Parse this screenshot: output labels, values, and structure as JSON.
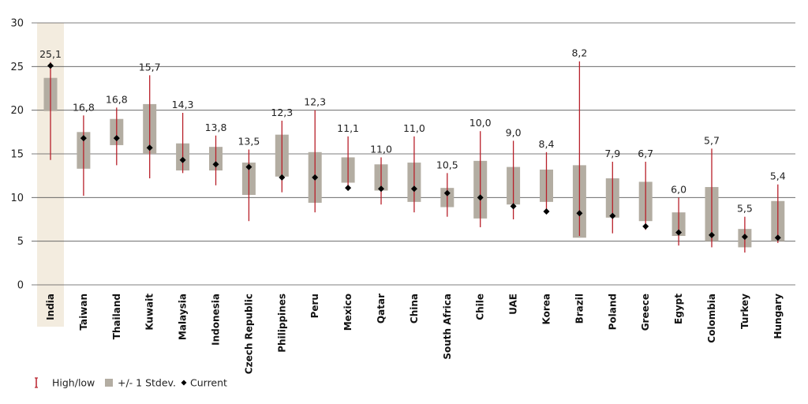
{
  "chart_data": {
    "type": "range",
    "categories": [
      "India",
      "Taiwan",
      "Thailand",
      "Kuwait",
      "Malaysia",
      "Indonesia",
      "Czech Republic",
      "Philippines",
      "Peru",
      "Mexico",
      "Qatar",
      "China",
      "South Africa",
      "Chile",
      "UAE",
      "Korea",
      "Brazil",
      "Poland",
      "Greece",
      "Egypt",
      "Colombia",
      "Turkey",
      "Hungary"
    ],
    "highlight_category": "India",
    "ylim": [
      0,
      30
    ],
    "yticks": [
      0,
      5,
      10,
      15,
      20,
      25,
      30
    ],
    "grid": true,
    "series": [
      {
        "name": "High/low",
        "high": [
          25.5,
          19.4,
          20.3,
          24.0,
          19.7,
          17.1,
          15.5,
          18.8,
          20.0,
          17.0,
          14.6,
          17.0,
          12.8,
          17.6,
          16.5,
          15.2,
          25.6,
          14.1,
          14.1,
          10.0,
          15.6,
          7.8,
          11.5
        ],
        "low": [
          14.3,
          10.2,
          13.7,
          12.2,
          12.8,
          11.4,
          7.3,
          10.6,
          8.3,
          11.0,
          9.2,
          8.3,
          7.8,
          6.6,
          7.5,
          8.5,
          5.6,
          5.9,
          6.3,
          4.5,
          4.3,
          3.7,
          4.8
        ]
      },
      {
        "name": "+/- 1 Stdev.",
        "upper": [
          23.7,
          17.5,
          19.0,
          20.7,
          16.2,
          15.8,
          14.0,
          17.2,
          15.2,
          14.6,
          13.8,
          14.0,
          11.1,
          14.2,
          13.5,
          13.2,
          13.7,
          12.2,
          11.8,
          8.3,
          11.2,
          6.4,
          9.6
        ],
        "lower": [
          19.9,
          13.3,
          16.0,
          15.0,
          13.1,
          13.1,
          10.3,
          12.4,
          9.4,
          11.7,
          10.8,
          9.5,
          8.9,
          7.6,
          9.2,
          9.5,
          5.4,
          7.7,
          7.3,
          5.6,
          5.0,
          4.3,
          5.0
        ]
      },
      {
        "name": "Current",
        "values": [
          25.1,
          16.8,
          16.8,
          15.7,
          14.3,
          13.8,
          13.5,
          12.3,
          12.3,
          11.1,
          11.0,
          11.0,
          10.5,
          10.0,
          9.0,
          8.4,
          8.2,
          7.9,
          6.7,
          6.0,
          5.7,
          5.5,
          5.4
        ],
        "labels": [
          "25,1",
          "16,8",
          "16,8",
          "15,7",
          "14,3",
          "13,8",
          "13,5",
          "12,3",
          "12,3",
          "11,1",
          "11,0",
          "11,0",
          "10,5",
          "10,0",
          "9,0",
          "8,4",
          "8,2",
          "7,9",
          "6,7",
          "6,0",
          "5,7",
          "5,5",
          "5,4"
        ]
      }
    ],
    "colors": {
      "highlow": "#b8202a",
      "stdev": "#b3ada2",
      "current": "#000000",
      "highlight_bg": "#f3ecdf",
      "grid": "#555555"
    },
    "legend": {
      "placement": "bottom-left",
      "items": [
        {
          "label": "High/low",
          "icon": "red-i-bar-icon"
        },
        {
          "label": "+/- 1 Stdev.",
          "icon": "grey-square-icon"
        },
        {
          "label": "Current",
          "icon": "black-diamond-icon"
        }
      ]
    }
  }
}
